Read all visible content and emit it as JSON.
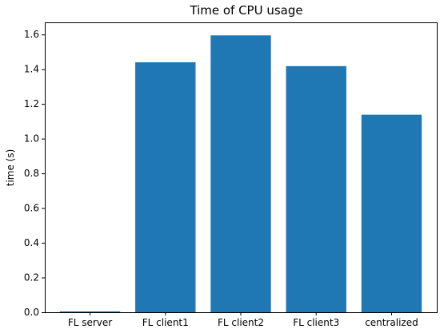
{
  "chart_data": {
    "type": "bar",
    "title": "Time of CPU usage",
    "xlabel": "",
    "ylabel": "time (s)",
    "categories": [
      "FL server",
      "FL client1",
      "FL client2",
      "FL client3",
      "centralized"
    ],
    "values": [
      0.005,
      1.44,
      1.595,
      1.418,
      1.138
    ],
    "ylim": [
      0,
      1.67
    ],
    "yticks": [
      0.0,
      0.2,
      0.4,
      0.6,
      0.8,
      1.0,
      1.2,
      1.4,
      1.6
    ],
    "ytick_labels": [
      "0.0",
      "0.2",
      "0.4",
      "0.6",
      "0.8",
      "1.0",
      "1.2",
      "1.4",
      "1.6"
    ],
    "bar_color": "#1f77b4",
    "grid": false,
    "legend": "none"
  }
}
